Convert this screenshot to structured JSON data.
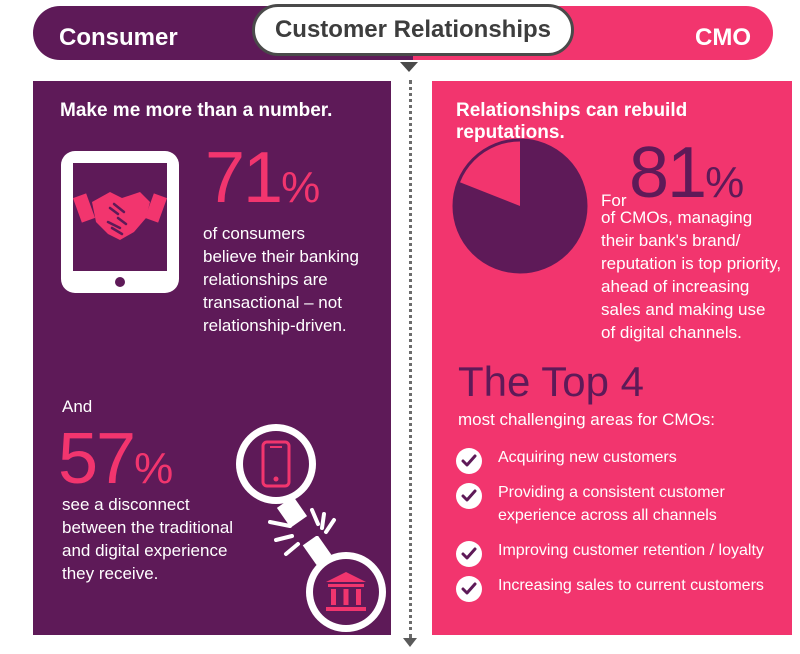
{
  "header": {
    "left_label": "Consumer",
    "center_label": "Customer Relationships",
    "right_label": "CMO"
  },
  "consumer": {
    "heading": "Make me more than a number.",
    "stat1": {
      "value": "71",
      "unit": "%",
      "text_lines": [
        "of consumers",
        "believe their banking",
        "relationships are",
        "transactional – not",
        "relationship-driven."
      ]
    },
    "stat2": {
      "prefix": "And",
      "value": "57",
      "unit": "%",
      "text_lines": [
        "see a disconnect",
        "between the traditional",
        "and digital experience",
        "they receive."
      ]
    },
    "icons": [
      "tablet-handshake-icon",
      "smartphone-icon",
      "broken-chain-icon",
      "bank-icon"
    ]
  },
  "cmo": {
    "heading": "Relationships can rebuild reputations.",
    "stat": {
      "prefix": "For",
      "value": "81",
      "unit": "%",
      "pie_fraction": 0.81,
      "text_lines": [
        "of CMOs, managing",
        "their bank's brand/",
        "reputation is top priority,",
        "ahead of increasing",
        "sales and making use",
        "of digital channels."
      ]
    },
    "top4": {
      "title": "The Top 4",
      "subtitle": "most challenging areas for CMOs:",
      "items": [
        [
          "Acquiring new customers"
        ],
        [
          "Providing a consistent customer",
          "experience across all channels"
        ],
        [
          "Improving customer retention / loyalty"
        ],
        [
          "Increasing sales to current customers"
        ]
      ]
    }
  },
  "colors": {
    "purple": "#5e1a58",
    "pink": "#f2356e",
    "white": "#ffffff",
    "gray": "#4a4a4a"
  }
}
